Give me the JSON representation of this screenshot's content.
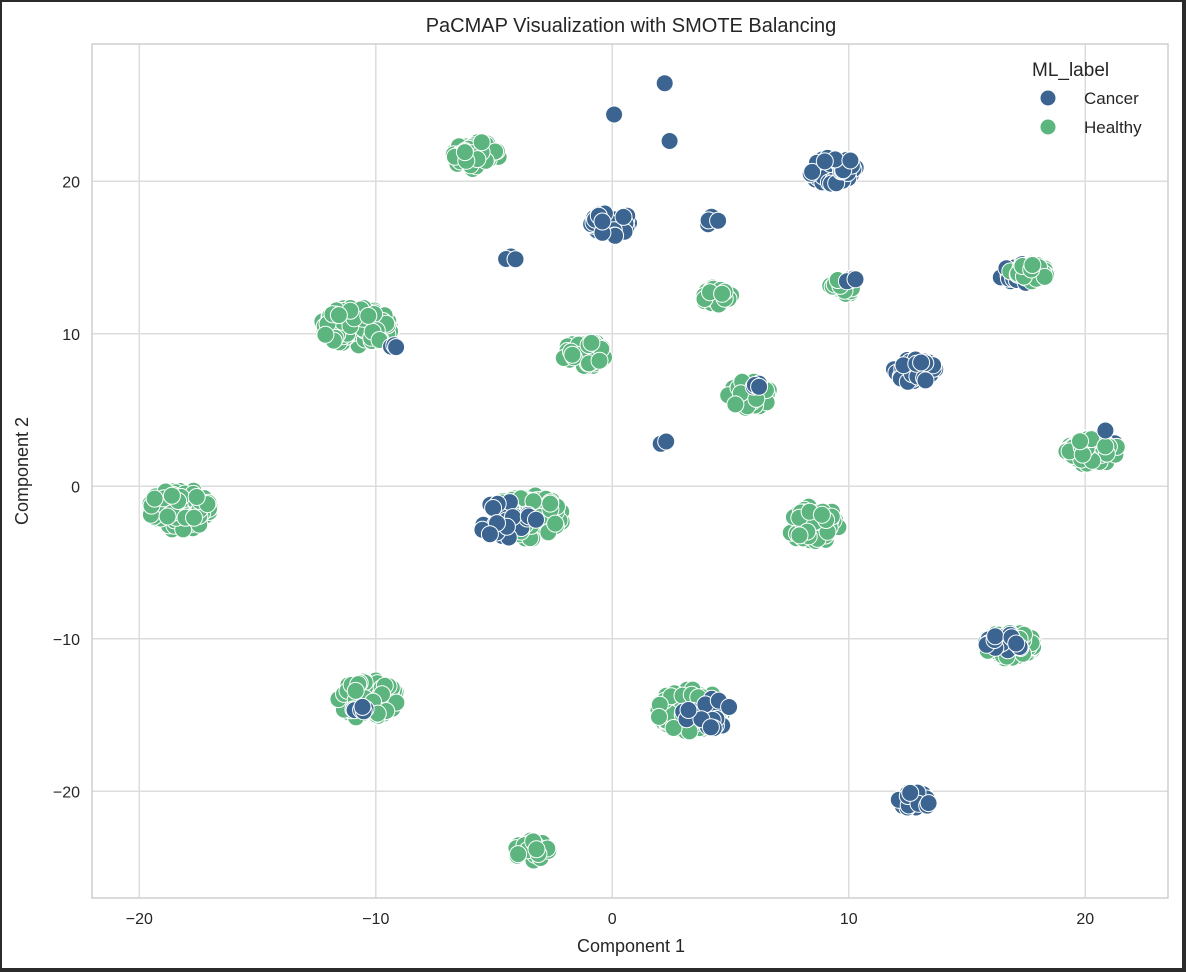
{
  "chart_data": {
    "type": "scatter",
    "title": "PaCMAP Visualization with SMOTE Balancing",
    "xlabel": "Component 1",
    "ylabel": "Component 2",
    "xlim": [
      -22,
      23.5
    ],
    "ylim": [
      -27,
      29
    ],
    "xticks": [
      -20,
      -10,
      0,
      10,
      20
    ],
    "yticks": [
      -20,
      -10,
      0,
      10,
      20
    ],
    "grid": true,
    "legend": {
      "title": "ML_label",
      "placement": "top-right"
    },
    "colors": {
      "Cancer": "#3b6590",
      "Healthy": "#5cb57e"
    },
    "clusters": [
      {
        "label": "Healthy",
        "cx": -18.3,
        "cy": -1.5,
        "rx": 1.3,
        "ry": 1.4,
        "n": 110
      },
      {
        "label": "Healthy",
        "cx": -10.8,
        "cy": 10.5,
        "rx": 1.5,
        "ry": 1.3,
        "n": 130
      },
      {
        "label": "Cancer",
        "cx": -9.2,
        "cy": 9.3,
        "rx": 0.3,
        "ry": 0.3,
        "n": 3
      },
      {
        "label": "Healthy",
        "cx": -10.3,
        "cy": -14.0,
        "rx": 1.3,
        "ry": 1.3,
        "n": 110
      },
      {
        "label": "Cancer",
        "cx": -10.8,
        "cy": -14.6,
        "rx": 0.5,
        "ry": 0.3,
        "n": 6
      },
      {
        "label": "Healthy",
        "cx": -5.8,
        "cy": 21.7,
        "rx": 1.0,
        "ry": 0.9,
        "n": 60
      },
      {
        "label": "Cancer",
        "cx": -4.2,
        "cy": 15.0,
        "rx": 0.4,
        "ry": 0.2,
        "n": 4
      },
      {
        "label": "Healthy",
        "cx": -3.6,
        "cy": -2.0,
        "rx": 1.5,
        "ry": 1.5,
        "n": 140
      },
      {
        "label": "Cancer",
        "cx": -4.5,
        "cy": -2.2,
        "rx": 1.3,
        "ry": 1.2,
        "n": 25
      },
      {
        "label": "Healthy",
        "cx": -3.4,
        "cy": -23.9,
        "rx": 0.7,
        "ry": 0.7,
        "n": 30
      },
      {
        "label": "Healthy",
        "cx": -1.2,
        "cy": 8.7,
        "rx": 0.9,
        "ry": 0.9,
        "n": 55
      },
      {
        "label": "Cancer",
        "cx": 0.0,
        "cy": 17.2,
        "rx": 0.9,
        "ry": 0.8,
        "n": 45
      },
      {
        "label": "Cancer",
        "cx": 0.0,
        "cy": 24.4,
        "rx": 0.1,
        "ry": 0.1,
        "n": 1
      },
      {
        "label": "Cancer",
        "cx": 2.2,
        "cy": 26.5,
        "rx": 0.1,
        "ry": 0.1,
        "n": 1
      },
      {
        "label": "Cancer",
        "cx": 2.3,
        "cy": 22.7,
        "rx": 0.2,
        "ry": 0.1,
        "n": 2
      },
      {
        "label": "Cancer",
        "cx": 2.2,
        "cy": 2.8,
        "rx": 0.2,
        "ry": 0.2,
        "n": 2
      },
      {
        "label": "Healthy",
        "cx": 3.3,
        "cy": -14.7,
        "rx": 1.4,
        "ry": 1.4,
        "n": 130
      },
      {
        "label": "Cancer",
        "cx": 4.0,
        "cy": -14.9,
        "rx": 1.1,
        "ry": 1.0,
        "n": 20
      },
      {
        "label": "Cancer",
        "cx": 4.3,
        "cy": 17.4,
        "rx": 0.4,
        "ry": 0.3,
        "n": 6
      },
      {
        "label": "Healthy",
        "cx": 4.4,
        "cy": 12.5,
        "rx": 0.7,
        "ry": 0.6,
        "n": 30
      },
      {
        "label": "Healthy",
        "cx": 5.8,
        "cy": 6.0,
        "rx": 0.9,
        "ry": 0.9,
        "n": 55
      },
      {
        "label": "Cancer",
        "cx": 6.1,
        "cy": 6.5,
        "rx": 0.4,
        "ry": 0.3,
        "n": 5
      },
      {
        "label": "Healthy",
        "cx": 8.5,
        "cy": -2.5,
        "rx": 1.1,
        "ry": 1.2,
        "n": 85
      },
      {
        "label": "Cancer",
        "cx": 9.4,
        "cy": 20.7,
        "rx": 1.1,
        "ry": 0.9,
        "n": 70
      },
      {
        "label": "Healthy",
        "cx": 9.8,
        "cy": 13.1,
        "rx": 0.6,
        "ry": 0.5,
        "n": 25
      },
      {
        "label": "Cancer",
        "cx": 10.2,
        "cy": 13.5,
        "rx": 0.3,
        "ry": 0.3,
        "n": 4
      },
      {
        "label": "Cancer",
        "cx": 12.8,
        "cy": 7.6,
        "rx": 0.9,
        "ry": 0.8,
        "n": 50
      },
      {
        "label": "Cancer",
        "cx": 12.8,
        "cy": -20.6,
        "rx": 0.7,
        "ry": 0.6,
        "n": 30
      },
      {
        "label": "Healthy",
        "cx": 16.8,
        "cy": -10.4,
        "rx": 1.1,
        "ry": 0.9,
        "n": 80
      },
      {
        "label": "Cancer",
        "cx": 16.6,
        "cy": -10.4,
        "rx": 0.9,
        "ry": 0.7,
        "n": 18
      },
      {
        "label": "Cancer",
        "cx": 17.3,
        "cy": 14.0,
        "rx": 1.0,
        "ry": 0.7,
        "n": 25
      },
      {
        "label": "Healthy",
        "cx": 17.6,
        "cy": 14.0,
        "rx": 0.8,
        "ry": 0.6,
        "n": 35
      },
      {
        "label": "Cancer",
        "cx": 20.4,
        "cy": 2.4,
        "rx": 1.1,
        "ry": 0.9,
        "n": 20
      },
      {
        "label": "Healthy",
        "cx": 20.3,
        "cy": 2.3,
        "rx": 1.1,
        "ry": 0.9,
        "n": 80
      },
      {
        "label": "Cancer",
        "cx": 20.8,
        "cy": 3.7,
        "rx": 0.1,
        "ry": 0.1,
        "n": 1
      }
    ]
  }
}
